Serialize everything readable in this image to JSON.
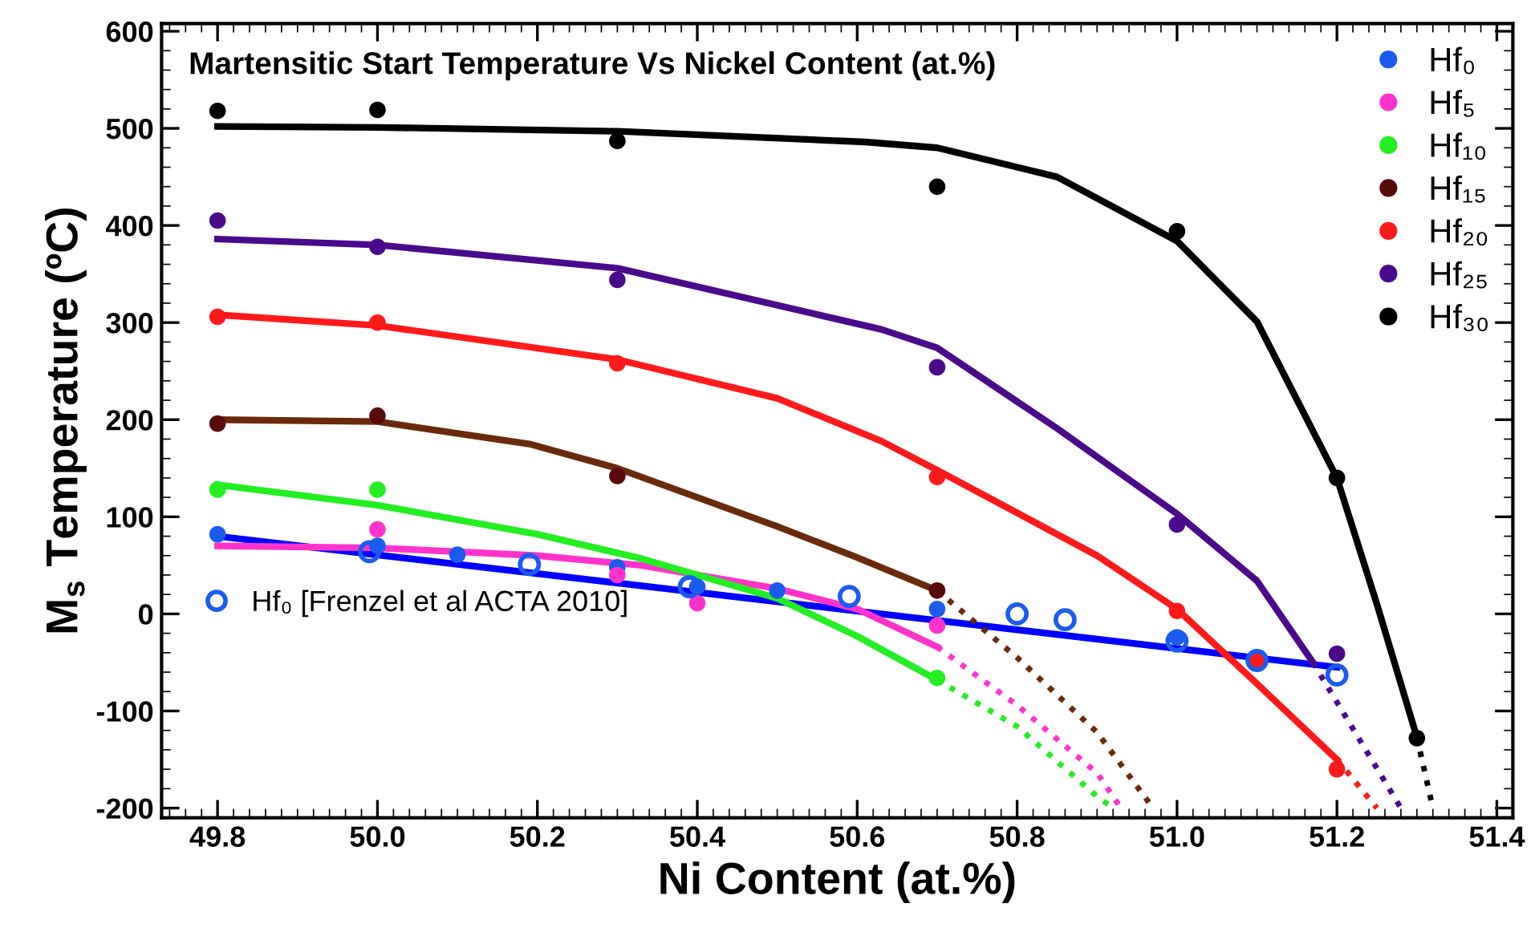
{
  "chart_data": {
    "type": "scatter",
    "title": "Martensitic Start Temperature Vs Nickel Content (at.%)",
    "xlabel": "Ni Content (at.%)",
    "ylabel": "M$_{s}$ Temperature (ºC)",
    "xlim": [
      49.73,
      51.42
    ],
    "xticks": [
      {
        "value": 49.8,
        "label": "49.8"
      },
      {
        "value": 50.0,
        "label": "50.0"
      },
      {
        "value": 50.2,
        "label": "50.2"
      },
      {
        "value": 50.4,
        "label": "50.4"
      },
      {
        "value": 50.6,
        "label": "50.6"
      },
      {
        "value": 50.8,
        "label": "50.8"
      },
      {
        "value": 51.0,
        "label": "51.0"
      },
      {
        "value": 51.2,
        "label": "51.2"
      },
      {
        "value": 51.4,
        "label": "51.4"
      }
    ],
    "ylim": [
      -210,
      608
    ],
    "yticks": [
      -200,
      -100,
      0,
      100,
      200,
      300,
      400,
      500,
      600
    ],
    "grid": false,
    "legend": "top right",
    "marker": "circle",
    "series": [
      {
        "name": "Hf₀",
        "color": "#1a5cf0",
        "x": [
          49.8,
          50.0,
          50.1,
          50.3,
          50.4,
          50.5,
          50.7,
          51.0
        ],
        "values": [
          82,
          70,
          61,
          48,
          28,
          24,
          5,
          -24
        ]
      },
      {
        "name": "Hf₅",
        "color": "#ff33cc",
        "x": [
          50.0,
          50.3,
          50.4,
          50.7
        ],
        "values": [
          87,
          40,
          11,
          -12
        ]
      },
      {
        "name": "Hf₁₀",
        "color": "#22ee22",
        "x": [
          49.8,
          50.0,
          50.7
        ],
        "values": [
          128,
          128,
          -66
        ]
      },
      {
        "name": "Hf₁₅",
        "color": "#5a0a0a",
        "x": [
          49.8,
          50.0,
          50.3,
          50.7
        ],
        "values": [
          196,
          204,
          142,
          24
        ]
      },
      {
        "name": "Hf₂₀",
        "color": "#ff1a1a",
        "x": [
          49.8,
          50.0,
          50.3,
          50.7,
          51.0,
          51.1,
          51.2
        ],
        "values": [
          306,
          300,
          258,
          141,
          3,
          -48,
          -160
        ]
      },
      {
        "name": "Hf₂₅",
        "color": "#4b0a8c",
        "x": [
          49.8,
          50.0,
          50.3,
          50.7,
          51.0,
          51.2
        ],
        "values": [
          405,
          378,
          344,
          254,
          92,
          -41
        ]
      },
      {
        "name": "Hf₃₀",
        "color": "#000000",
        "x": [
          49.8,
          50.0,
          50.3,
          50.7,
          51.0,
          51.2,
          51.3
        ],
        "values": [
          518,
          519,
          487,
          440,
          394,
          140,
          -128
        ]
      },
      {
        "name": "Hf₀ [Frenzel et al ACTA 2010]",
        "color": "#1a5cf0",
        "marker": "open circle",
        "x": [
          49.99,
          50.19,
          50.39,
          50.59,
          50.8,
          50.86,
          51.0,
          51.1,
          51.2
        ],
        "values": [
          64,
          51,
          28,
          18,
          0,
          -6,
          -28,
          -48,
          -63
        ]
      },
      {
        "type": "line",
        "color": "#0000ff",
        "marker": "none",
        "line_style": "solid",
        "x": [
          49.8,
          51.2
        ],
        "values": [
          80,
          -55
        ]
      },
      {
        "type": "line",
        "color": "#ff33cc",
        "marker": "none",
        "line_style": "solid",
        "x": [
          49.8,
          50.0,
          50.2,
          50.33,
          50.5,
          50.6,
          50.7
        ],
        "values": [
          70,
          68,
          60,
          50,
          26,
          5,
          -34
        ]
      },
      {
        "type": "line",
        "color": "#ff33cc",
        "marker": "none",
        "line_style": "dotted",
        "x": [
          50.7,
          50.8,
          50.9,
          50.93
        ],
        "values": [
          -34,
          -94,
          -164,
          -200
        ]
      },
      {
        "type": "line",
        "color": "#22ee22",
        "marker": "none",
        "line_style": "solid",
        "x": [
          49.8,
          50.0,
          50.2,
          50.33,
          50.5,
          50.6,
          50.7
        ],
        "values": [
          133,
          112,
          82,
          57,
          16,
          -23,
          -68
        ]
      },
      {
        "type": "line",
        "color": "#22ee22",
        "marker": "none",
        "line_style": "dotted",
        "x": [
          50.7,
          50.8,
          50.9,
          50.92
        ],
        "values": [
          -68,
          -116,
          -188,
          -200
        ]
      },
      {
        "type": "line",
        "color": "#6b2a0a",
        "marker": "none",
        "line_style": "solid",
        "x": [
          49.8,
          50.0,
          50.19,
          50.3,
          50.4,
          50.5,
          50.6,
          50.7
        ],
        "values": [
          200,
          198,
          175,
          150,
          120,
          90,
          58,
          24
        ]
      },
      {
        "type": "line",
        "color": "#6b2a0a",
        "marker": "none",
        "line_style": "dotted",
        "x": [
          50.7,
          50.8,
          50.9,
          50.97
        ],
        "values": [
          24,
          -45,
          -122,
          -200
        ]
      },
      {
        "type": "line",
        "color": "#ff1a1a",
        "marker": "none",
        "line_style": "solid",
        "x": [
          49.8,
          50.0,
          50.3,
          50.5,
          50.63,
          50.7,
          50.9,
          51.0,
          51.1,
          51.2
        ],
        "values": [
          308,
          297,
          262,
          222,
          178,
          148,
          60,
          5,
          -72,
          -150
        ]
      },
      {
        "type": "line",
        "color": "#ff1a1a",
        "marker": "none",
        "line_style": "dotted",
        "x": [
          51.2,
          51.25
        ],
        "values": [
          -150,
          -200
        ]
      },
      {
        "type": "line",
        "color": "#4b0a8c",
        "marker": "none",
        "line_style": "solid",
        "x": [
          49.8,
          50.0,
          50.3,
          50.63,
          50.7,
          50.85,
          51.0,
          51.1,
          51.17
        ],
        "values": [
          386,
          380,
          356,
          293,
          274,
          191,
          103,
          34,
          -50
        ]
      },
      {
        "type": "line",
        "color": "#4b0a8c",
        "marker": "none",
        "line_style": "dotted",
        "x": [
          51.17,
          51.28
        ],
        "values": [
          -50,
          -200
        ]
      },
      {
        "type": "line",
        "color": "#000000",
        "marker": "none",
        "line_style": "solid",
        "x": [
          49.8,
          50.0,
          50.3,
          50.61,
          50.7,
          50.85,
          51.0,
          51.1,
          51.2,
          51.25,
          51.3
        ],
        "values": [
          502,
          501,
          497,
          486,
          480,
          450,
          384,
          301,
          140,
          10,
          -127
        ]
      },
      {
        "type": "line",
        "color": "#000000",
        "marker": "none",
        "line_style": "dotted",
        "x": [
          51.3,
          51.32
        ],
        "values": [
          -127,
          -200
        ]
      }
    ]
  }
}
